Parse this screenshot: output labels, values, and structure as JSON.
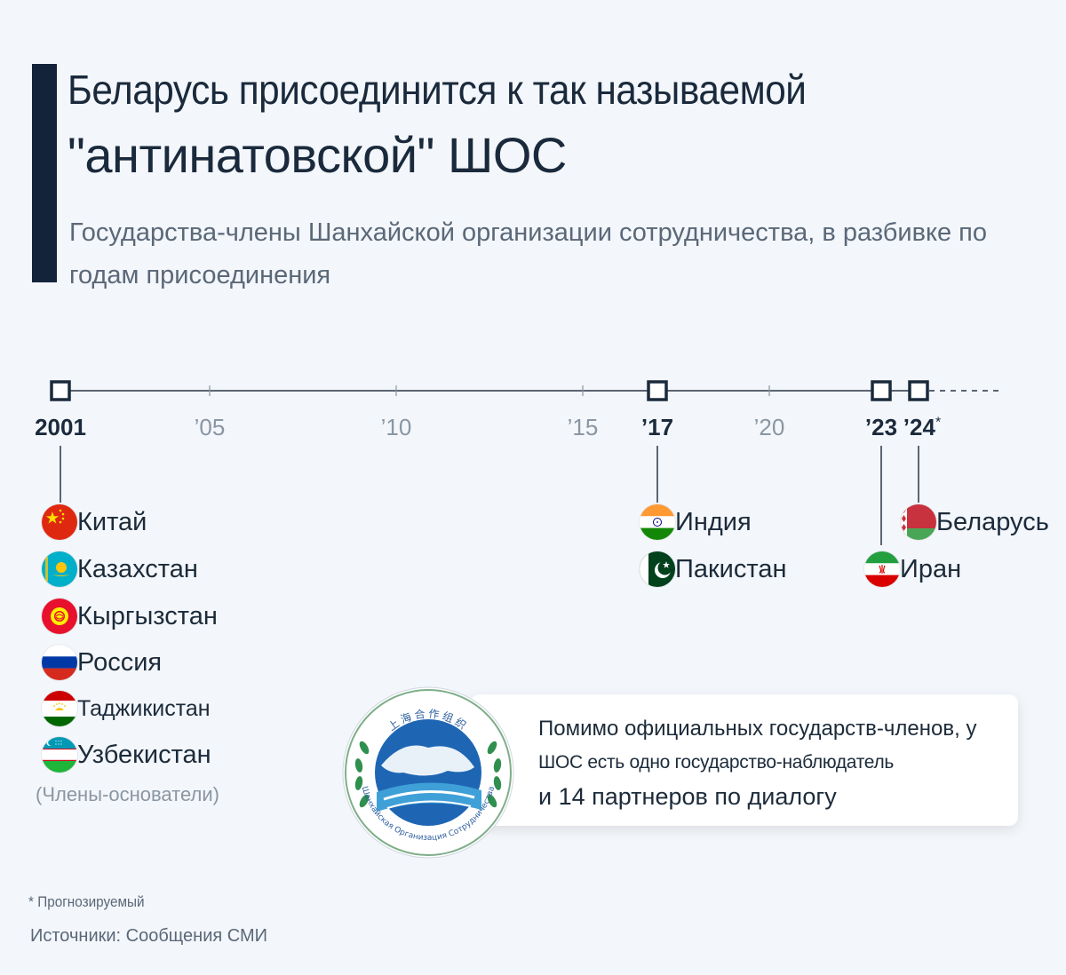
{
  "title_line1": "Беларусь присоединится к так называемой",
  "title_line2": "\"антинатовской\" ШОС",
  "subtitle": "Государства-члены Шанхайской организации сотрудничества, в разбивке по годам присоединения",
  "colors": {
    "accent": "#13233a",
    "timeline": "#2b3645",
    "muted": "#8a96a3"
  },
  "chart_data": {
    "type": "timeline",
    "axis_range": [
      2001,
      2026
    ],
    "major_ticks": [
      {
        "year": 2001,
        "label": "2001"
      },
      {
        "year": 2017,
        "label": "’17"
      },
      {
        "year": 2023,
        "label": "’23"
      },
      {
        "year": 2024,
        "label": "’24",
        "marker": "*"
      }
    ],
    "minor_ticks": [
      {
        "year": 2005,
        "label": "’05"
      },
      {
        "year": 2010,
        "label": "’10"
      },
      {
        "year": 2015,
        "label": "’15"
      },
      {
        "year": 2020,
        "label": "’20"
      }
    ],
    "events": [
      {
        "year": 2001,
        "countries": [
          {
            "name": "Китай",
            "flag": "china-flag-icon"
          },
          {
            "name": "Казахстан",
            "flag": "kazakhstan-flag-icon"
          },
          {
            "name": "Кыргызстан",
            "flag": "kyrgyzstan-flag-icon"
          },
          {
            "name": "Россия",
            "flag": "russia-flag-icon"
          },
          {
            "name": "Таджикистан",
            "flag": "tajikistan-flag-icon"
          },
          {
            "name": "Узбекистан",
            "flag": "uzbekistan-flag-icon"
          }
        ],
        "note": "(Члены-основатели)"
      },
      {
        "year": 2017,
        "countries": [
          {
            "name": "Индия",
            "flag": "india-flag-icon"
          },
          {
            "name": "Пакистан",
            "flag": "pakistan-flag-icon"
          }
        ]
      },
      {
        "year": 2023,
        "countries": [
          {
            "name": "Иран",
            "flag": "iran-flag-icon"
          }
        ]
      },
      {
        "year": 2024,
        "countries": [
          {
            "name": "Беларусь",
            "flag": "belarus-flag-icon"
          }
        ]
      }
    ]
  },
  "note": {
    "line1": "Помимо официальных государств-членов, у",
    "line2": "ШОС есть одно государство-наблюдатель",
    "line3": "и 14 партнеров по диалогу"
  },
  "logo": {
    "icon": "sco-emblem-icon",
    "text_top": "上海合作组织",
    "text_bottom": "Шанхайская Организация Сотрудничества"
  },
  "footnote": "* Прогнозируемый",
  "sources": "Источники: Сообщения СМИ"
}
